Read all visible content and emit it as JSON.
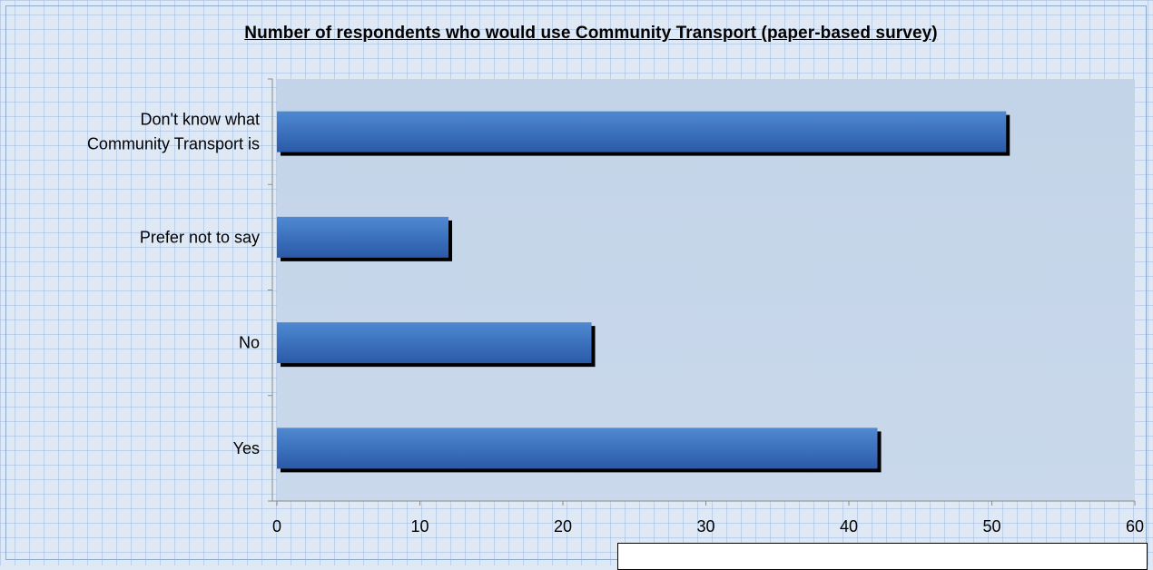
{
  "chart_data": {
    "type": "bar",
    "orientation": "horizontal",
    "title": "Number of respondents who would use Community Transport (paper-based survey)",
    "categories": [
      "Yes",
      "No",
      "Prefer not to say",
      "Don't know what Community Transport is"
    ],
    "category_label_lines": [
      [
        "Yes"
      ],
      [
        "No"
      ],
      [
        "Prefer not to say"
      ],
      [
        "Don't know what",
        "Community Transport is"
      ]
    ],
    "values": [
      42,
      22,
      12,
      51
    ],
    "xlim": [
      0,
      60
    ],
    "x_ticks": [
      0,
      10,
      20,
      30,
      40,
      50,
      60
    ],
    "xlabel": "",
    "ylabel": "",
    "grid": false,
    "legend": "none",
    "colors": {
      "bar_fill_top": "#4f89d2",
      "bar_fill_bottom": "#2a5aa8",
      "bar_shadow": "#000000",
      "plot_area_top": "#c4d4e8",
      "plot_area_bottom": "#c9d8eb",
      "axis": "#8a8a8a"
    }
  }
}
